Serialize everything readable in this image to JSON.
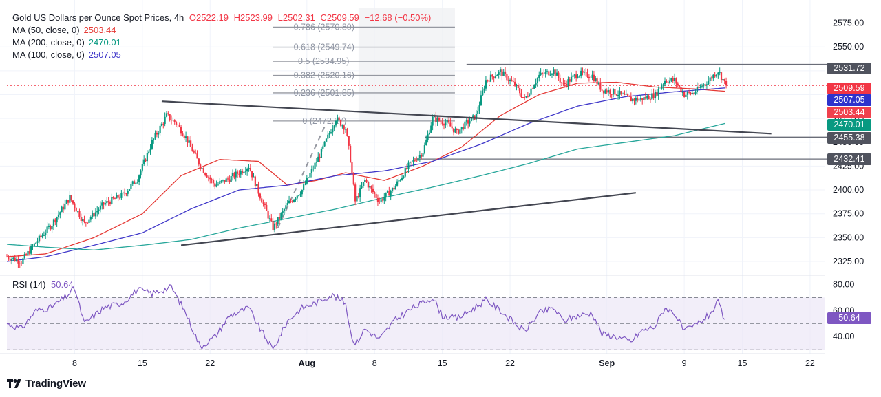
{
  "legend": {
    "title": "Gold US Dollars per Ounce Spot Prices, 4h",
    "open": "O2522.19",
    "high": "H2523.99",
    "low": "L2502.31",
    "close": "C2509.59",
    "change": "−12.68 (−0.50%)",
    "ma50_label": "MA (50, close, 0)",
    "ma50_value": "2503.44",
    "ma200_label": "MA (200, close, 0)",
    "ma200_value": "2470.01",
    "ma100_label": "MA (100, close, 0)",
    "ma100_value": "2507.05"
  },
  "rsi_legend": {
    "label": "RSI (14)",
    "value": "50.64"
  },
  "branding": {
    "logo_text": "TradingView",
    "logo_icon": "tradingview-logo-icon"
  },
  "price_tags": {
    "resistance": "2531.72",
    "last_price": "2509.59",
    "ma100": "2507.05",
    "ma50": "2503.44",
    "ma200": "2470.01",
    "support1": "2455.38",
    "support2": "2432.41",
    "rsi": "50.64"
  },
  "colors": {
    "up": "#089981",
    "down": "#f23645",
    "ma50": "#e53935",
    "ma200": "#26a69a",
    "ma100": "#3f37c9",
    "rsi": "#7e57c2",
    "rsi_band": "#ede7f6",
    "trendline": "#434651",
    "level_line": "#6a6d78",
    "fib": "#9598a1",
    "grid": "#f0f3fa"
  },
  "chart_data": [
    {
      "type": "candlestick",
      "title": "Gold US Dollars per Ounce Spot Prices, 4h",
      "timeframe": "4h",
      "x_axis": {
        "tick_labels": [
          "8",
          "15",
          "22",
          "Aug",
          "8",
          "15",
          "22",
          "Sep",
          "9",
          "15",
          "22"
        ],
        "tick_days": [
          8,
          15,
          22,
          32,
          39,
          46,
          53,
          63,
          71,
          77,
          84
        ],
        "x_domain_days": [
          1,
          85.5
        ],
        "note": "x values in days since June 30 (1 = July 1)"
      },
      "y_axis": {
        "ticks": [
          2325,
          2350,
          2375,
          2400,
          2425,
          2450,
          2475,
          2500,
          2525,
          2550,
          2575
        ],
        "tick_labels": [
          "2325.00",
          "2350.00",
          "2375.00",
          "2400.00",
          "2425.00",
          "2450.00",
          "2475.00",
          "2500.00",
          "2525.00",
          "2550.00",
          "2575.00"
        ],
        "ylim": [
          2312,
          2592
        ]
      },
      "price_keypoints": [
        [
          1.0,
          2330
        ],
        [
          2.5,
          2325
        ],
        [
          4.0,
          2345
        ],
        [
          5.5,
          2362
        ],
        [
          7.5,
          2392
        ],
        [
          9.0,
          2365
        ],
        [
          11.0,
          2385
        ],
        [
          13.0,
          2395
        ],
        [
          14.5,
          2412
        ],
        [
          16.0,
          2450
        ],
        [
          17.5,
          2478
        ],
        [
          18.5,
          2470
        ],
        [
          19.5,
          2455
        ],
        [
          21.0,
          2425
        ],
        [
          22.5,
          2405
        ],
        [
          24.0,
          2412
        ],
        [
          26.0,
          2425
        ],
        [
          27.0,
          2398
        ],
        [
          28.5,
          2360
        ],
        [
          30.0,
          2385
        ],
        [
          31.5,
          2400
        ],
        [
          32.5,
          2420
        ],
        [
          33.5,
          2440
        ],
        [
          35.0,
          2475
        ],
        [
          36.0,
          2465
        ],
        [
          36.5,
          2432
        ],
        [
          37.0,
          2388
        ],
        [
          38.0,
          2410
        ],
        [
          39.5,
          2388
        ],
        [
          41.0,
          2402
        ],
        [
          42.5,
          2425
        ],
        [
          44.0,
          2440
        ],
        [
          45.0,
          2475
        ],
        [
          46.5,
          2470
        ],
        [
          47.5,
          2460
        ],
        [
          48.5,
          2470
        ],
        [
          49.5,
          2478
        ],
        [
          50.5,
          2515
        ],
        [
          52.0,
          2524
        ],
        [
          53.5,
          2510
        ],
        [
          54.5,
          2495
        ],
        [
          56.0,
          2520
        ],
        [
          57.5,
          2525
        ],
        [
          58.5,
          2510
        ],
        [
          60.0,
          2522
        ],
        [
          61.5,
          2520
        ],
        [
          62.5,
          2505
        ],
        [
          64.0,
          2502
        ],
        [
          65.5,
          2495
        ],
        [
          66.5,
          2495
        ],
        [
          68.0,
          2500
        ],
        [
          69.0,
          2515
        ],
        [
          70.0,
          2515
        ],
        [
          71.0,
          2500
        ],
        [
          72.0,
          2502
        ],
        [
          73.5,
          2515
        ],
        [
          74.5,
          2525
        ],
        [
          75.3,
          2510
        ]
      ],
      "series": [
        {
          "name": "MA (50, close, 0)",
          "last_value": 2503.44,
          "keypoints": [
            [
              1.0,
              2330
            ],
            [
              5.0,
              2333
            ],
            [
              10.0,
              2350
            ],
            [
              15.0,
              2375
            ],
            [
              19.0,
              2415
            ],
            [
              23.0,
              2432
            ],
            [
              27.0,
              2430
            ],
            [
              30.0,
              2405
            ],
            [
              33.0,
              2410
            ],
            [
              36.0,
              2418
            ],
            [
              40.0,
              2410
            ],
            [
              44.0,
              2425
            ],
            [
              48.0,
              2445
            ],
            [
              52.0,
              2478
            ],
            [
              56.0,
              2500
            ],
            [
              60.0,
              2512
            ],
            [
              64.0,
              2513
            ],
            [
              68.0,
              2508
            ],
            [
              72.0,
              2506
            ],
            [
              75.3,
              2503.44
            ]
          ]
        },
        {
          "name": "MA (100, close, 0)",
          "last_value": 2507.05,
          "keypoints": [
            [
              1.0,
              2325
            ],
            [
              5.0,
              2330
            ],
            [
              10.0,
              2342
            ],
            [
              15.0,
              2355
            ],
            [
              20.0,
              2380
            ],
            [
              25.0,
              2400
            ],
            [
              30.0,
              2405
            ],
            [
              35.0,
              2415
            ],
            [
              40.0,
              2420
            ],
            [
              45.0,
              2430
            ],
            [
              50.0,
              2448
            ],
            [
              55.0,
              2470
            ],
            [
              60.0,
              2488
            ],
            [
              65.0,
              2498
            ],
            [
              70.0,
              2503
            ],
            [
              75.3,
              2507.05
            ]
          ]
        },
        {
          "name": "MA (200, close, 0)",
          "last_value": 2470.01,
          "keypoints": [
            [
              1.0,
              2343
            ],
            [
              5.0,
              2340
            ],
            [
              10.0,
              2337
            ],
            [
              15.0,
              2342
            ],
            [
              20.0,
              2348
            ],
            [
              25.0,
              2360
            ],
            [
              30.0,
              2370
            ],
            [
              35.0,
              2380
            ],
            [
              40.0,
              2392
            ],
            [
              45.0,
              2403
            ],
            [
              50.0,
              2415
            ],
            [
              55.0,
              2428
            ],
            [
              60.0,
              2443
            ],
            [
              65.0,
              2450
            ],
            [
              70.0,
              2457
            ],
            [
              75.3,
              2470.01
            ]
          ]
        }
      ],
      "horizontal_levels": [
        2531.72,
        2455.38,
        2432.41
      ],
      "last_price": 2509.59,
      "trendlines": [
        {
          "from": [
            17.0,
            2493
          ],
          "to": [
            80.0,
            2459
          ]
        },
        {
          "from": [
            19.0,
            2342
          ],
          "to": [
            66.0,
            2397
          ]
        }
      ],
      "fibonacci": {
        "levels": [
          {
            "ratio": "0.786",
            "label": "0.786 (2570.80)",
            "price": 2570.8
          },
          {
            "ratio": "0.618",
            "label": "0.618 (2549.74)",
            "price": 2549.74
          },
          {
            "ratio": "0.5",
            "label": "0.5 (2534.95)",
            "price": 2534.95
          },
          {
            "ratio": "0.382",
            "label": "0.382 (2520.16)",
            "price": 2520.16
          },
          {
            "ratio": "0.236",
            "label": "0.236 (2501.85)",
            "price": 2501.85
          },
          {
            "ratio": "0",
            "label": "0 (2472.27)",
            "price": 2472.27
          }
        ],
        "x_range_days": [
          28.5,
          47.3
        ],
        "guide_from": [
          29.0,
          2360
        ],
        "guide_to": [
          34.0,
          2470
        ]
      }
    },
    {
      "type": "line",
      "title": "RSI (14)",
      "last_value": 50.64,
      "y_axis": {
        "ticks": [
          40,
          60,
          80
        ],
        "tick_labels": [
          "40.00",
          "60.00",
          "80.00"
        ],
        "ylim": [
          28,
          86
        ]
      },
      "bands": {
        "upper": 70,
        "middle": 50,
        "lower": 30
      },
      "keypoints": [
        [
          1.0,
          50
        ],
        [
          2.5,
          46
        ],
        [
          4.0,
          60
        ],
        [
          5.5,
          62
        ],
        [
          7.0,
          70
        ],
        [
          8.0,
          77
        ],
        [
          9.0,
          50
        ],
        [
          11.0,
          62
        ],
        [
          13.0,
          66
        ],
        [
          14.5,
          76
        ],
        [
          16.0,
          73
        ],
        [
          18.0,
          78
        ],
        [
          19.5,
          58
        ],
        [
          21.0,
          32
        ],
        [
          22.5,
          40
        ],
        [
          24.0,
          56
        ],
        [
          26.0,
          62
        ],
        [
          27.0,
          48
        ],
        [
          28.5,
          30
        ],
        [
          30.0,
          52
        ],
        [
          31.5,
          62
        ],
        [
          33.0,
          66
        ],
        [
          34.5,
          72
        ],
        [
          36.0,
          66
        ],
        [
          36.5,
          44
        ],
        [
          37.0,
          34
        ],
        [
          38.0,
          46
        ],
        [
          39.5,
          38
        ],
        [
          41.0,
          52
        ],
        [
          42.5,
          60
        ],
        [
          44.0,
          66
        ],
        [
          45.0,
          70
        ],
        [
          46.0,
          56
        ],
        [
          47.5,
          54
        ],
        [
          48.5,
          58
        ],
        [
          50.5,
          68
        ],
        [
          52.0,
          60
        ],
        [
          53.5,
          50
        ],
        [
          54.5,
          44
        ],
        [
          56.0,
          58
        ],
        [
          57.5,
          62
        ],
        [
          58.5,
          52
        ],
        [
          60.0,
          56
        ],
        [
          61.5,
          58
        ],
        [
          62.5,
          42
        ],
        [
          64.0,
          40
        ],
        [
          65.5,
          36
        ],
        [
          66.5,
          44
        ],
        [
          68.0,
          48
        ],
        [
          69.0,
          62
        ],
        [
          70.0,
          58
        ],
        [
          71.0,
          44
        ],
        [
          72.0,
          48
        ],
        [
          73.5,
          56
        ],
        [
          74.5,
          66
        ],
        [
          75.3,
          50.64
        ]
      ]
    }
  ]
}
